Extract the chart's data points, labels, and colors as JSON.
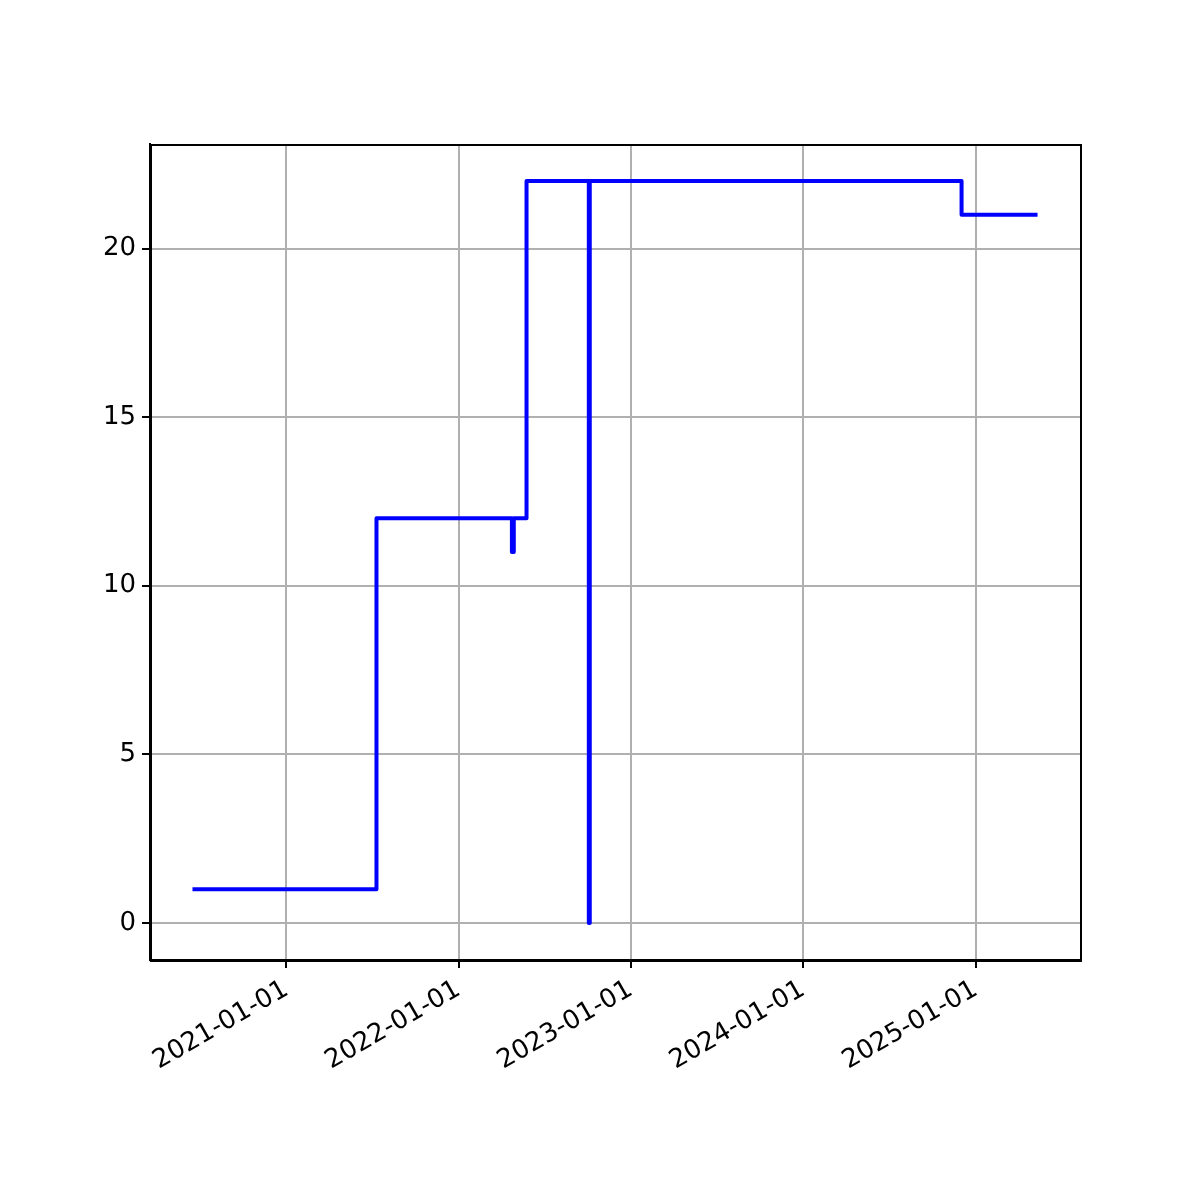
{
  "chart_data": {
    "type": "step",
    "x": [
      "2020-06-16",
      "2021-07-11",
      "2022-04-24",
      "2022-04-28",
      "2022-05-25",
      "2022-10-04",
      "2022-10-06",
      "2024-12-02",
      "2025-05-12"
    ],
    "series": [
      {
        "color": "#0000ff",
        "values": [
          1,
          12,
          11,
          12,
          22,
          0,
          22,
          21,
          21
        ]
      }
    ],
    "xlim": [
      "2020-03-18",
      "2025-08-10"
    ],
    "xticks": [
      "2021-01-01",
      "2022-01-01",
      "2023-01-01",
      "2024-01-01",
      "2025-01-01"
    ],
    "ylim": [
      -1.1,
      23.1
    ],
    "yticks": [
      0,
      5,
      10,
      15,
      20
    ],
    "grid": true,
    "legend": false
  }
}
